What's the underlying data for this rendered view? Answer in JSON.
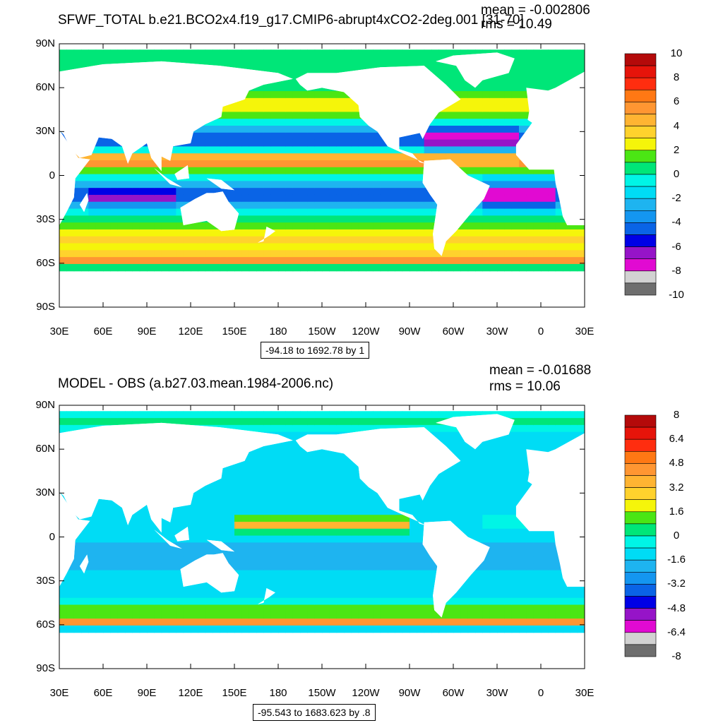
{
  "colors": {
    "palette": [
      "#6e6e6e",
      "#d2d2d2",
      "#e10ad2",
      "#9614c8",
      "#0000e6",
      "#0a64e6",
      "#1496f0",
      "#1eb4f0",
      "#00dcf5",
      "#00f5e6",
      "#00e678",
      "#4be614",
      "#f5f50a",
      "#ffd22d",
      "#ffb432",
      "#ff9632",
      "#ff7814",
      "#ff2d0f",
      "#e6140a",
      "#b40a0a"
    ],
    "land": "#ffffff",
    "contour": "#333333"
  },
  "panels": [
    {
      "title": "SFWF_TOTAL b.e21.BCO2x4.f19_g17.CMIP6-abrupt4xCO2-2deg.001 [31-70]",
      "mean": "mean = -0.002806",
      "rms": "rms = 10.49",
      "range": "-94.18 to 1692.78 by 1",
      "lat_labels": [
        "90N",
        "60N",
        "30N",
        "0",
        "30S",
        "60S",
        "90S"
      ],
      "lon_labels": [
        "30E",
        "60E",
        "90E",
        "120E",
        "150E",
        "180",
        "150W",
        "120W",
        "90W",
        "60W",
        "30W",
        "0",
        "30E"
      ],
      "colorbar_labels": [
        "10",
        "8",
        "6",
        "4",
        "2",
        "0",
        "-2",
        "-4",
        "-6",
        "-8",
        "-10"
      ],
      "field": "model"
    },
    {
      "title": "MODEL - OBS (a.b27.03.mean.1984-2006.nc)",
      "mean": "mean = -0.01688",
      "rms": "rms = 10.06",
      "range": "-95.543 to 1683.623 by .8",
      "lat_labels": [
        "90N",
        "60N",
        "30N",
        "0",
        "30S",
        "60S",
        "90S"
      ],
      "lon_labels": [
        "30E",
        "60E",
        "90E",
        "120E",
        "150E",
        "180",
        "150W",
        "120W",
        "90W",
        "60W",
        "30W",
        "0",
        "30E"
      ],
      "colorbar_labels": [
        "8",
        "6.4",
        "4.8",
        "3.2",
        "1.6",
        "0",
        "-1.6",
        "-3.2",
        "-4.8",
        "-6.4",
        "-8"
      ],
      "field": "diff"
    }
  ]
}
